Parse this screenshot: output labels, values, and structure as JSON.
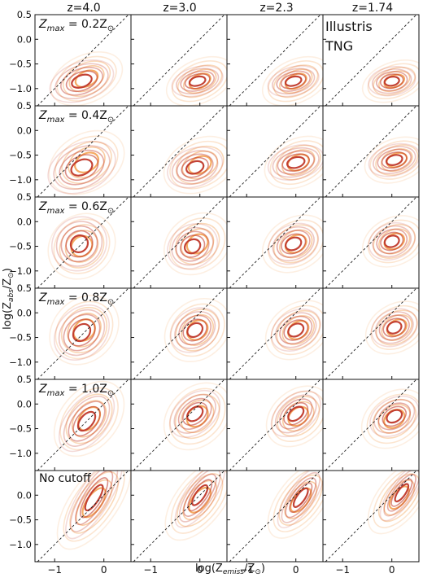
{
  "figure": {
    "column_titles": [
      "z=4.0",
      "z=3.0",
      "z=2.3",
      "z=1.74"
    ],
    "row_labels": [
      {
        "prefix": "Z",
        "sub": "max",
        "middle": " = 0.2Z",
        "sun": "⊙"
      },
      {
        "prefix": "Z",
        "sub": "max",
        "middle": " = 0.4Z",
        "sun": "⊙"
      },
      {
        "prefix": "Z",
        "sub": "max",
        "middle": " = 0.6Z",
        "sun": "⊙"
      },
      {
        "prefix": "Z",
        "sub": "max",
        "middle": " = 0.8Z",
        "sun": "⊙"
      },
      {
        "prefix": "Z",
        "sub": "max",
        "middle": " = 1.0Z",
        "sun": "⊙"
      },
      {
        "plain": "No cutoff"
      }
    ],
    "xlabel": {
      "pre": "log(Z",
      "sub": "emiss",
      "post": "/Z",
      "sun": "⊙",
      "close": ")"
    },
    "ylabel": {
      "pre": "log(Z",
      "sub": "abs",
      "post": "/Z",
      "sun": "⊙",
      "close": ")"
    },
    "legend": [
      {
        "name": "Illustris",
        "color": "#f4a65c"
      },
      {
        "name": "TNG",
        "color": "#c0392b"
      }
    ],
    "xticks": [
      "−1",
      "0"
    ],
    "yticks": [
      "0.5",
      "0.0",
      "−0.5",
      "−1.0"
    ]
  },
  "chart_data": {
    "type": "contour",
    "x_domain": [
      -1.4,
      0.55
    ],
    "y_domain": [
      -1.35,
      0.5
    ],
    "x_ticks": [
      -1,
      0
    ],
    "y_ticks": [
      0.5,
      0.0,
      -0.5,
      -1.0
    ],
    "rows_top_tick": [
      true,
      true,
      true,
      true,
      true,
      false
    ],
    "reference_line": "y = x (dashed)",
    "contour_levels": 5,
    "panels": [
      [
        {
          "tng": {
            "cx": -0.45,
            "cy": -0.85,
            "sx": 0.28,
            "sy": 0.16,
            "angle": 20
          },
          "illustris": {
            "cx": -0.35,
            "cy": -0.8,
            "sx": 0.32,
            "sy": 0.2,
            "angle": 25
          }
        },
        {
          "tng": {
            "cx": -0.05,
            "cy": -0.85,
            "sx": 0.22,
            "sy": 0.12,
            "angle": 15
          },
          "illustris": {
            "cx": 0.0,
            "cy": -0.85,
            "sx": 0.3,
            "sy": 0.18,
            "angle": 25
          }
        },
        {
          "tng": {
            "cx": -0.05,
            "cy": -0.85,
            "sx": 0.22,
            "sy": 0.12,
            "angle": 15
          },
          "illustris": {
            "cx": 0.0,
            "cy": -0.85,
            "sx": 0.3,
            "sy": 0.18,
            "angle": 25
          }
        },
        {
          "tng": {
            "cx": 0.0,
            "cy": -0.85,
            "sx": 0.2,
            "sy": 0.12,
            "angle": 10
          },
          "illustris": {
            "cx": 0.05,
            "cy": -0.85,
            "sx": 0.28,
            "sy": 0.16,
            "angle": 20
          }
        }
      ],
      [
        {
          "tng": {
            "cx": -0.45,
            "cy": -0.75,
            "sx": 0.3,
            "sy": 0.2,
            "angle": 25
          },
          "illustris": {
            "cx": -0.35,
            "cy": -0.65,
            "sx": 0.34,
            "sy": 0.24,
            "angle": 30
          }
        },
        {
          "tng": {
            "cx": -0.1,
            "cy": -0.75,
            "sx": 0.24,
            "sy": 0.16,
            "angle": 20
          },
          "illustris": {
            "cx": 0.0,
            "cy": -0.7,
            "sx": 0.32,
            "sy": 0.22,
            "angle": 25
          }
        },
        {
          "tng": {
            "cx": 0.0,
            "cy": -0.65,
            "sx": 0.24,
            "sy": 0.14,
            "angle": 15
          },
          "illustris": {
            "cx": 0.05,
            "cy": -0.65,
            "sx": 0.3,
            "sy": 0.2,
            "angle": 25
          }
        },
        {
          "tng": {
            "cx": 0.05,
            "cy": -0.6,
            "sx": 0.22,
            "sy": 0.13,
            "angle": 15
          },
          "illustris": {
            "cx": 0.1,
            "cy": -0.6,
            "sx": 0.28,
            "sy": 0.18,
            "angle": 20
          }
        }
      ],
      [
        {
          "tng": {
            "cx": -0.5,
            "cy": -0.45,
            "sx": 0.24,
            "sy": 0.22,
            "angle": 40
          },
          "illustris": {
            "cx": -0.45,
            "cy": -0.5,
            "sx": 0.3,
            "sy": 0.26,
            "angle": 40
          }
        },
        {
          "tng": {
            "cx": -0.15,
            "cy": -0.5,
            "sx": 0.22,
            "sy": 0.18,
            "angle": 30
          },
          "illustris": {
            "cx": -0.05,
            "cy": -0.45,
            "sx": 0.3,
            "sy": 0.24,
            "angle": 35
          }
        },
        {
          "tng": {
            "cx": -0.05,
            "cy": -0.45,
            "sx": 0.22,
            "sy": 0.16,
            "angle": 25
          },
          "illustris": {
            "cx": 0.0,
            "cy": -0.45,
            "sx": 0.3,
            "sy": 0.22,
            "angle": 30
          }
        },
        {
          "tng": {
            "cx": 0.0,
            "cy": -0.4,
            "sx": 0.2,
            "sy": 0.15,
            "angle": 20
          },
          "illustris": {
            "cx": 0.05,
            "cy": -0.4,
            "sx": 0.28,
            "sy": 0.2,
            "angle": 25
          }
        }
      ],
      [
        {
          "tng": {
            "cx": -0.45,
            "cy": -0.4,
            "sx": 0.26,
            "sy": 0.2,
            "angle": 45
          },
          "illustris": {
            "cx": -0.4,
            "cy": -0.35,
            "sx": 0.32,
            "sy": 0.26,
            "angle": 45
          }
        },
        {
          "tng": {
            "cx": -0.1,
            "cy": -0.35,
            "sx": 0.22,
            "sy": 0.17,
            "angle": 35
          },
          "illustris": {
            "cx": -0.05,
            "cy": -0.35,
            "sx": 0.3,
            "sy": 0.24,
            "angle": 40
          }
        },
        {
          "tng": {
            "cx": 0.0,
            "cy": -0.35,
            "sx": 0.22,
            "sy": 0.16,
            "angle": 30
          },
          "illustris": {
            "cx": 0.05,
            "cy": -0.35,
            "sx": 0.3,
            "sy": 0.22,
            "angle": 35
          }
        },
        {
          "tng": {
            "cx": 0.05,
            "cy": -0.3,
            "sx": 0.2,
            "sy": 0.15,
            "angle": 25
          },
          "illustris": {
            "cx": 0.1,
            "cy": -0.3,
            "sx": 0.28,
            "sy": 0.2,
            "angle": 30
          }
        }
      ],
      [
        {
          "tng": {
            "cx": -0.35,
            "cy": -0.35,
            "sx": 0.3,
            "sy": 0.17,
            "angle": 50
          },
          "illustris": {
            "cx": -0.3,
            "cy": -0.3,
            "sx": 0.36,
            "sy": 0.24,
            "angle": 50
          }
        },
        {
          "tng": {
            "cx": -0.1,
            "cy": -0.2,
            "sx": 0.24,
            "sy": 0.16,
            "angle": 40
          },
          "illustris": {
            "cx": -0.05,
            "cy": -0.25,
            "sx": 0.32,
            "sy": 0.24,
            "angle": 45
          }
        },
        {
          "tng": {
            "cx": 0.0,
            "cy": -0.2,
            "sx": 0.24,
            "sy": 0.15,
            "angle": 40
          },
          "illustris": {
            "cx": 0.05,
            "cy": -0.25,
            "sx": 0.3,
            "sy": 0.22,
            "angle": 40
          }
        },
        {
          "tng": {
            "cx": 0.05,
            "cy": -0.25,
            "sx": 0.22,
            "sy": 0.15,
            "angle": 30
          },
          "illustris": {
            "cx": 0.05,
            "cy": -0.3,
            "sx": 0.3,
            "sy": 0.22,
            "angle": 35
          }
        }
      ],
      [
        {
          "tng": {
            "cx": -0.2,
            "cy": -0.05,
            "sx": 0.4,
            "sy": 0.13,
            "angle": 58
          },
          "illustris": {
            "cx": -0.2,
            "cy": -0.15,
            "sx": 0.46,
            "sy": 0.2,
            "angle": 55
          }
        },
        {
          "tng": {
            "cx": 0.0,
            "cy": 0.0,
            "sx": 0.32,
            "sy": 0.12,
            "angle": 55
          },
          "illustris": {
            "cx": 0.0,
            "cy": -0.1,
            "sx": 0.4,
            "sy": 0.2,
            "angle": 52
          }
        },
        {
          "tng": {
            "cx": 0.1,
            "cy": -0.05,
            "sx": 0.3,
            "sy": 0.11,
            "angle": 55
          },
          "illustris": {
            "cx": 0.1,
            "cy": -0.1,
            "sx": 0.38,
            "sy": 0.19,
            "angle": 52
          }
        },
        {
          "tng": {
            "cx": 0.2,
            "cy": 0.05,
            "sx": 0.28,
            "sy": 0.1,
            "angle": 55
          },
          "illustris": {
            "cx": 0.15,
            "cy": -0.05,
            "sx": 0.36,
            "sy": 0.18,
            "angle": 52
          }
        }
      ]
    ]
  }
}
